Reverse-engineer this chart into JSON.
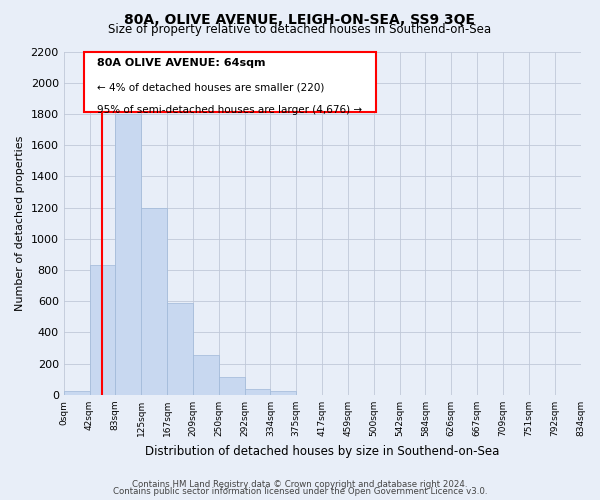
{
  "title": "80A, OLIVE AVENUE, LEIGH-ON-SEA, SS9 3QE",
  "subtitle": "Size of property relative to detached houses in Southend-on-Sea",
  "xlabel": "Distribution of detached houses by size in Southend-on-Sea",
  "ylabel": "Number of detached properties",
  "bar_color": "#c8d8f0",
  "bar_edge_color": "#a0b8d8",
  "bin_labels": [
    "0sqm",
    "42sqm",
    "83sqm",
    "125sqm",
    "167sqm",
    "209sqm",
    "250sqm",
    "292sqm",
    "334sqm",
    "375sqm",
    "417sqm",
    "459sqm",
    "500sqm",
    "542sqm",
    "584sqm",
    "626sqm",
    "667sqm",
    "709sqm",
    "751sqm",
    "792sqm",
    "834sqm"
  ],
  "bar_heights": [
    25,
    830,
    1800,
    1200,
    590,
    255,
    115,
    40,
    25,
    0,
    0,
    0,
    0,
    0,
    0,
    0,
    0,
    0,
    0,
    0
  ],
  "annotation_line1": "80A OLIVE AVENUE: 64sqm",
  "annotation_line2": "← 4% of detached houses are smaller (220)",
  "annotation_line3": "95% of semi-detached houses are larger (4,676) →",
  "ylim": [
    0,
    2200
  ],
  "yticks": [
    0,
    200,
    400,
    600,
    800,
    1000,
    1200,
    1400,
    1600,
    1800,
    2000,
    2200
  ],
  "red_line_x": 1.5,
  "footnote1": "Contains HM Land Registry data © Crown copyright and database right 2024.",
  "footnote2": "Contains public sector information licensed under the Open Government Licence v3.0.",
  "background_color": "#e8eef8"
}
